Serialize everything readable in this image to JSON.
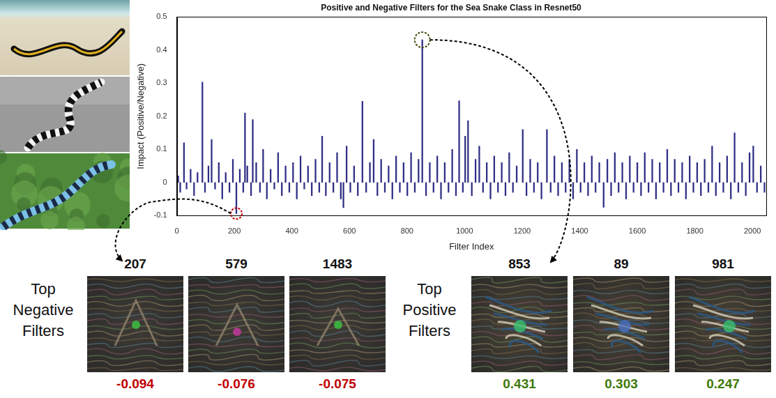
{
  "chart_data": {
    "type": "bar",
    "title": "Positive and Negative Filters for the Sea Snake Class in Resnet50",
    "x_label": "Filter Index",
    "y_label": "Impact (Positive/Negative)",
    "x": [
      5,
      12,
      25,
      34,
      48,
      60,
      72,
      89,
      98,
      110,
      121,
      133,
      146,
      158,
      170,
      183,
      195,
      207,
      219,
      231,
      237,
      245,
      258,
      264,
      276,
      289,
      300,
      313,
      326,
      339,
      352,
      365,
      378,
      391,
      404,
      417,
      430,
      443,
      456,
      469,
      482,
      495,
      505,
      518,
      531,
      544,
      557,
      570,
      579,
      590,
      603,
      616,
      629,
      645,
      658,
      671,
      684,
      697,
      710,
      723,
      736,
      749,
      762,
      775,
      788,
      801,
      814,
      827,
      840,
      853,
      866,
      879,
      892,
      905,
      918,
      931,
      944,
      957,
      970,
      981,
      994,
      1002,
      1012,
      1025,
      1038,
      1051,
      1064,
      1077,
      1090,
      1103,
      1116,
      1129,
      1142,
      1155,
      1168,
      1181,
      1202,
      1215,
      1228,
      1241,
      1254,
      1267,
      1286,
      1299,
      1312,
      1325,
      1338,
      1351,
      1364,
      1377,
      1390,
      1403,
      1416,
      1429,
      1442,
      1455,
      1468,
      1483,
      1496,
      1509,
      1522,
      1535,
      1548,
      1561,
      1574,
      1587,
      1600,
      1613,
      1626,
      1639,
      1652,
      1665,
      1678,
      1691,
      1704,
      1717,
      1730,
      1743,
      1756,
      1769,
      1782,
      1795,
      1808,
      1821,
      1834,
      1847,
      1860,
      1873,
      1886,
      1899,
      1912,
      1925,
      1938,
      1951,
      1964,
      1977,
      1990,
      2003,
      2016,
      2029,
      2042
    ],
    "values": [
      0.02,
      -0.03,
      0.12,
      -0.02,
      0.04,
      -0.04,
      0.03,
      0.303,
      -0.03,
      0.05,
      0.13,
      -0.02,
      0.06,
      -0.05,
      0.03,
      -0.03,
      0.07,
      -0.094,
      0.04,
      -0.03,
      0.21,
      0.05,
      -0.04,
      0.19,
      0.06,
      -0.03,
      0.1,
      -0.05,
      0.04,
      -0.02,
      0.09,
      -0.04,
      0.05,
      -0.03,
      0.06,
      -0.05,
      0.08,
      -0.02,
      0.05,
      -0.04,
      0.07,
      -0.03,
      0.14,
      -0.04,
      0.06,
      -0.03,
      0.09,
      -0.05,
      -0.076,
      0.11,
      -0.03,
      0.05,
      -0.04,
      0.245,
      -0.03,
      0.06,
      0.13,
      -0.04,
      0.07,
      -0.03,
      0.05,
      -0.05,
      0.08,
      -0.03,
      0.06,
      -0.04,
      0.09,
      -0.03,
      0.07,
      0.431,
      -0.04,
      0.06,
      -0.03,
      0.08,
      -0.05,
      0.06,
      -0.03,
      0.1,
      -0.04,
      0.247,
      -0.03,
      0.14,
      0.187,
      -0.04,
      0.07,
      0.11,
      -0.03,
      0.06,
      -0.05,
      0.08,
      -0.03,
      0.06,
      -0.04,
      0.09,
      -0.03,
      0.05,
      0.16,
      -0.04,
      0.07,
      -0.03,
      0.06,
      -0.05,
      0.16,
      -0.03,
      0.08,
      -0.04,
      0.06,
      -0.03,
      0.07,
      -0.05,
      0.1,
      -0.03,
      0.06,
      -0.04,
      0.08,
      -0.03,
      0.06,
      -0.075,
      0.07,
      -0.04,
      0.09,
      -0.03,
      0.06,
      -0.05,
      0.08,
      -0.03,
      0.06,
      -0.04,
      0.09,
      -0.03,
      0.07,
      -0.05,
      0.06,
      -0.03,
      0.1,
      -0.04,
      0.07,
      -0.03,
      0.06,
      -0.05,
      0.08,
      -0.03,
      0.06,
      -0.04,
      0.07,
      -0.03,
      0.11,
      -0.04,
      0.06,
      -0.03,
      0.08,
      -0.05,
      0.15,
      -0.03,
      0.06,
      -0.04,
      0.09,
      0.11,
      -0.03,
      0.05,
      -0.03
    ],
    "color": "#2e2e85",
    "xlim": [
      0,
      2048
    ],
    "ylim": [
      -0.1,
      0.5
    ],
    "xticks": [
      0,
      200,
      400,
      600,
      800,
      1000,
      1200,
      1400,
      1600,
      1800,
      2000
    ],
    "yticks": [
      -0.1,
      0,
      0.1,
      0.2,
      0.3,
      0.4,
      0.5
    ],
    "grid": false
  },
  "circled": [
    207,
    853
  ],
  "filters": {
    "negative": {
      "title": "Top Negative Filters",
      "color": "#c00000",
      "items": [
        {
          "index": 207,
          "impact": -0.094
        },
        {
          "index": 579,
          "impact": -0.076
        },
        {
          "index": 1483,
          "impact": -0.075
        }
      ]
    },
    "positive": {
      "title": "Top Positive Filters",
      "color": "#3f7a0c",
      "items": [
        {
          "index": 853,
          "impact": 0.431
        },
        {
          "index": 89,
          "impact": 0.303
        },
        {
          "index": 981,
          "impact": 0.247
        }
      ]
    }
  }
}
